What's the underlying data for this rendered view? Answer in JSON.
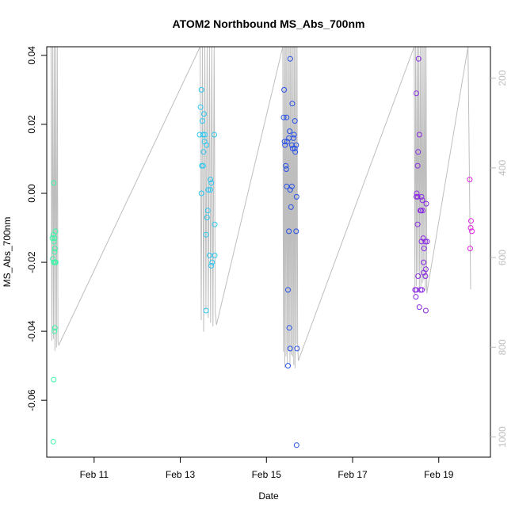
{
  "chart_data": {
    "type": "scatter",
    "title": "ATOM2 Northbound MS_Abs_700nm",
    "xlabel": "Date",
    "ylabel": "MS_Abs_700nm",
    "x_ticks": [
      "Feb 11",
      "Feb 13",
      "Feb 15",
      "Feb 17",
      "Feb 19"
    ],
    "x_tick_days": [
      11,
      13,
      15,
      17,
      19
    ],
    "xlim": [
      9.9,
      20.2
    ],
    "y_ticks": [
      -0.06,
      -0.04,
      -0.02,
      0.0,
      0.02,
      0.04
    ],
    "y_tick_labels": [
      "-0.06",
      "-0.04",
      "-0.02",
      "0.00",
      "0.02",
      "0.04"
    ],
    "ylim": [
      -0.0765,
      0.0425
    ],
    "y2_ticks": [
      200,
      400,
      600,
      800,
      1000
    ],
    "y2lim": [
      1045,
      130
    ],
    "grid": false,
    "legend": "none",
    "series": [
      {
        "color": "#3FF5A8",
        "points": [
          [
            10.06,
            0.003
          ],
          [
            10.05,
            -0.012
          ],
          [
            10.08,
            -0.013
          ],
          [
            10.03,
            -0.013
          ],
          [
            10.1,
            -0.011
          ],
          [
            10.07,
            -0.014
          ],
          [
            10.09,
            -0.016
          ],
          [
            10.08,
            -0.017
          ],
          [
            10.04,
            -0.019
          ],
          [
            10.06,
            -0.02
          ],
          [
            10.09,
            -0.02
          ],
          [
            10.11,
            -0.02
          ],
          [
            10.09,
            -0.039
          ],
          [
            10.08,
            -0.04
          ],
          [
            10.06,
            -0.054
          ],
          [
            10.05,
            -0.072
          ]
        ]
      },
      {
        "color": "#2CC7F0",
        "points": [
          [
            13.49,
            0.03
          ],
          [
            13.47,
            0.025
          ],
          [
            13.55,
            0.023
          ],
          [
            13.51,
            0.021
          ],
          [
            13.45,
            0.017
          ],
          [
            13.53,
            0.017
          ],
          [
            13.57,
            0.017
          ],
          [
            13.79,
            0.017
          ],
          [
            13.56,
            0.015
          ],
          [
            13.61,
            0.014
          ],
          [
            13.54,
            0.012
          ],
          [
            13.5,
            0.008
          ],
          [
            13.53,
            0.008
          ],
          [
            13.7,
            0.004
          ],
          [
            13.72,
            0.003
          ],
          [
            13.65,
            0.001
          ],
          [
            13.7,
            0.001
          ],
          [
            13.49,
            0.0
          ],
          [
            13.64,
            -0.005
          ],
          [
            13.62,
            -0.007
          ],
          [
            13.8,
            -0.009
          ],
          [
            13.6,
            -0.012
          ],
          [
            13.68,
            -0.018
          ],
          [
            13.8,
            -0.018
          ],
          [
            13.74,
            -0.02
          ],
          [
            13.72,
            -0.021
          ],
          [
            13.6,
            -0.034
          ]
        ]
      },
      {
        "color": "#2850E6",
        "points": [
          [
            15.41,
            0.03
          ],
          [
            15.55,
            0.039
          ],
          [
            15.4,
            0.022
          ],
          [
            15.47,
            0.022
          ],
          [
            15.6,
            0.026
          ],
          [
            15.66,
            0.021
          ],
          [
            15.54,
            0.018
          ],
          [
            15.64,
            0.017
          ],
          [
            15.52,
            0.016
          ],
          [
            15.63,
            0.016
          ],
          [
            15.42,
            0.015
          ],
          [
            15.48,
            0.015
          ],
          [
            15.59,
            0.014
          ],
          [
            15.43,
            0.014
          ],
          [
            15.69,
            0.014
          ],
          [
            15.66,
            0.013
          ],
          [
            15.61,
            0.013
          ],
          [
            15.67,
            0.012
          ],
          [
            15.45,
            0.008
          ],
          [
            15.46,
            0.007
          ],
          [
            15.47,
            0.002
          ],
          [
            15.59,
            0.002
          ],
          [
            15.55,
            0.001
          ],
          [
            15.7,
            -0.001
          ],
          [
            15.57,
            -0.004
          ],
          [
            15.52,
            -0.011
          ],
          [
            15.69,
            -0.011
          ],
          [
            15.5,
            -0.028
          ],
          [
            15.53,
            -0.039
          ],
          [
            15.55,
            -0.045
          ],
          [
            15.71,
            -0.045
          ],
          [
            15.5,
            -0.05
          ],
          [
            15.7,
            -0.073
          ]
        ]
      },
      {
        "color": "#8A2BE2",
        "points": [
          [
            18.53,
            0.039
          ],
          [
            18.48,
            0.029
          ],
          [
            18.55,
            0.017
          ],
          [
            18.52,
            0.012
          ],
          [
            18.51,
            0.008
          ],
          [
            18.49,
            0.0
          ],
          [
            18.51,
            -0.001
          ],
          [
            18.6,
            -0.001
          ],
          [
            18.48,
            -0.001
          ],
          [
            18.62,
            -0.002
          ],
          [
            18.71,
            -0.003
          ],
          [
            18.57,
            -0.005
          ],
          [
            18.63,
            -0.005
          ],
          [
            18.59,
            -0.005
          ],
          [
            18.51,
            -0.009
          ],
          [
            18.64,
            -0.013
          ],
          [
            18.6,
            -0.014
          ],
          [
            18.69,
            -0.014
          ],
          [
            18.73,
            -0.014
          ],
          [
            18.66,
            -0.016
          ],
          [
            18.65,
            -0.02
          ],
          [
            18.7,
            -0.022
          ],
          [
            18.65,
            -0.023
          ],
          [
            18.52,
            -0.024
          ],
          [
            18.69,
            -0.024
          ],
          [
            18.45,
            -0.028
          ],
          [
            18.48,
            -0.028
          ],
          [
            18.58,
            -0.028
          ],
          [
            18.61,
            -0.028
          ],
          [
            18.47,
            -0.03
          ],
          [
            18.55,
            -0.033
          ],
          [
            18.7,
            -0.034
          ]
        ]
      },
      {
        "color": "#E020E0",
        "points": [
          [
            19.72,
            0.004
          ],
          [
            19.75,
            -0.008
          ],
          [
            19.74,
            -0.01
          ],
          [
            19.77,
            -0.011
          ],
          [
            19.73,
            -0.016
          ]
        ]
      }
    ]
  }
}
